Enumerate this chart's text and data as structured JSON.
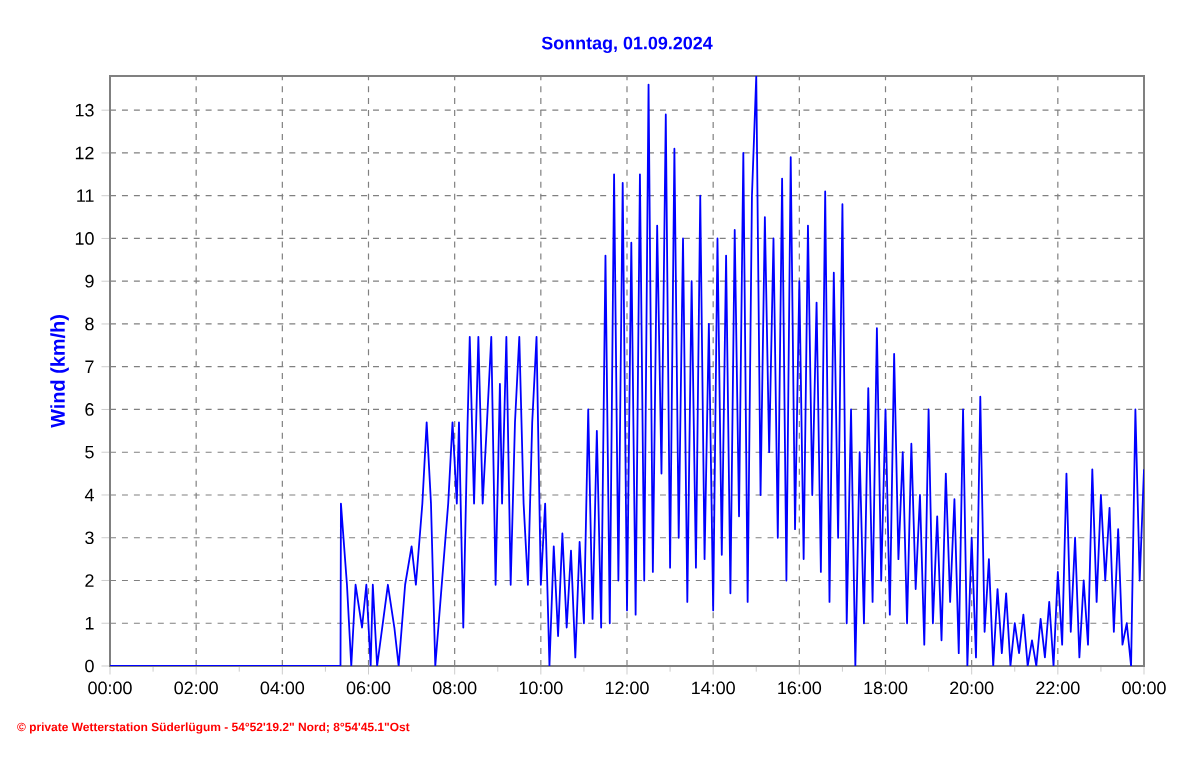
{
  "chart_data": {
    "type": "line",
    "title": "Sonntag, 01.09.2024",
    "ylabel": "Wind  (km/h)",
    "annotations": [
      "© private Wetterstation Süderlügum - 54°52'19.2\" Nord; 8°54'45.1\"Ost"
    ],
    "xlim": [
      0,
      24
    ],
    "ylim": [
      0,
      13.8
    ],
    "xticks": [
      {
        "value": 0,
        "label": "00:00"
      },
      {
        "value": 1,
        "label": null
      },
      {
        "value": 2,
        "label": "02:00"
      },
      {
        "value": 3,
        "label": null
      },
      {
        "value": 4,
        "label": "04:00"
      },
      {
        "value": 5,
        "label": null
      },
      {
        "value": 6,
        "label": "06:00"
      },
      {
        "value": 7,
        "label": null
      },
      {
        "value": 8,
        "label": "08:00"
      },
      {
        "value": 9,
        "label": null
      },
      {
        "value": 10,
        "label": "10:00"
      },
      {
        "value": 11,
        "label": null
      },
      {
        "value": 12,
        "label": "12:00"
      },
      {
        "value": 13,
        "label": null
      },
      {
        "value": 14,
        "label": "14:00"
      },
      {
        "value": 15,
        "label": null
      },
      {
        "value": 16,
        "label": "16:00"
      },
      {
        "value": 17,
        "label": null
      },
      {
        "value": 18,
        "label": "18:00"
      },
      {
        "value": 19,
        "label": null
      },
      {
        "value": 20,
        "label": "20:00"
      },
      {
        "value": 21,
        "label": null
      },
      {
        "value": 22,
        "label": "22:00"
      },
      {
        "value": 23,
        "label": null
      },
      {
        "value": 24,
        "label": "00:00"
      }
    ],
    "yticks": [
      0,
      1,
      2,
      3,
      4,
      5,
      6,
      7,
      8,
      9,
      10,
      11,
      12,
      13
    ],
    "grid": true,
    "line_style": "solid",
    "marker": "none",
    "x": [
      0,
      5.35,
      5.36,
      5.5,
      5.6,
      5.7,
      5.85,
      5.95,
      6.05,
      6.1,
      6.2,
      6.45,
      6.6,
      6.7,
      6.85,
      7.0,
      7.1,
      7.25,
      7.35,
      7.45,
      7.55,
      7.7,
      7.85,
      7.95,
      8.05,
      8.1,
      8.2,
      8.3,
      8.35,
      8.45,
      8.55,
      8.65,
      8.75,
      8.85,
      8.95,
      9.05,
      9.1,
      9.2,
      9.3,
      9.4,
      9.5,
      9.6,
      9.7,
      9.8,
      9.9,
      10.0,
      10.1,
      10.2,
      10.3,
      10.4,
      10.5,
      10.6,
      10.7,
      10.8,
      10.9,
      11.0,
      11.1,
      11.2,
      11.3,
      11.4,
      11.5,
      11.6,
      11.7,
      11.8,
      11.9,
      12.0,
      12.1,
      12.2,
      12.3,
      12.4,
      12.5,
      12.6,
      12.7,
      12.8,
      12.9,
      13.0,
      13.1,
      13.2,
      13.3,
      13.4,
      13.5,
      13.6,
      13.7,
      13.8,
      13.9,
      14.0,
      14.1,
      14.2,
      14.3,
      14.4,
      14.5,
      14.6,
      14.7,
      14.8,
      14.9,
      15.0,
      15.1,
      15.2,
      15.3,
      15.4,
      15.5,
      15.6,
      15.7,
      15.8,
      15.9,
      16.0,
      16.1,
      16.2,
      16.3,
      16.4,
      16.5,
      16.6,
      16.7,
      16.8,
      16.9,
      17.0,
      17.1,
      17.2,
      17.3,
      17.4,
      17.5,
      17.6,
      17.7,
      17.8,
      17.9,
      18.0,
      18.1,
      18.2,
      18.3,
      18.4,
      18.5,
      18.6,
      18.7,
      18.8,
      18.9,
      19.0,
      19.1,
      19.2,
      19.3,
      19.4,
      19.5,
      19.6,
      19.7,
      19.8,
      19.9,
      20.0,
      20.1,
      20.2,
      20.3,
      20.4,
      20.5,
      20.6,
      20.7,
      20.8,
      20.9,
      21.0,
      21.1,
      21.2,
      21.3,
      21.4,
      21.5,
      21.6,
      21.7,
      21.8,
      21.9,
      22.0,
      22.1,
      22.2,
      22.3,
      22.4,
      22.5,
      22.6,
      22.7,
      22.8,
      22.9,
      23.0,
      23.1,
      23.2,
      23.3,
      23.4,
      23.5,
      23.6,
      23.7,
      23.8,
      23.9,
      24.0
    ],
    "series": [
      {
        "color": "#0000ff",
        "values": [
          0,
          0,
          3.8,
          1.9,
          0,
          1.9,
          0.9,
          1.9,
          0,
          1.9,
          0,
          1.9,
          0.9,
          0,
          1.9,
          2.8,
          1.9,
          3.8,
          5.7,
          3.8,
          0,
          1.9,
          3.8,
          5.7,
          3.8,
          5.7,
          0.9,
          5.7,
          7.7,
          3.8,
          7.7,
          3.8,
          5.7,
          7.7,
          1.9,
          6.6,
          3.8,
          7.7,
          1.9,
          5.7,
          7.7,
          3.8,
          1.9,
          5.7,
          7.7,
          1.9,
          3.8,
          0,
          2.8,
          0.7,
          3.1,
          0.9,
          2.7,
          0.2,
          2.9,
          1.0,
          6.0,
          1.1,
          5.5,
          0.9,
          9.6,
          1.0,
          11.5,
          2.0,
          11.3,
          1.3,
          9.9,
          1.2,
          11.5,
          2.0,
          13.6,
          2.2,
          10.3,
          4.5,
          12.9,
          2.3,
          12.1,
          3.0,
          10.0,
          1.5,
          9.0,
          2.3,
          11.0,
          2.5,
          8.0,
          1.3,
          10.0,
          2.6,
          9.6,
          1.7,
          10.2,
          3.5,
          12.0,
          1.5,
          11.0,
          13.8,
          4.0,
          10.5,
          5.0,
          10.0,
          3.0,
          11.4,
          2.0,
          11.9,
          3.2,
          9.0,
          2.5,
          10.3,
          4.0,
          8.5,
          2.2,
          11.1,
          1.5,
          9.2,
          3.0,
          10.8,
          1.0,
          6.0,
          0,
          5.0,
          1.0,
          6.5,
          1.5,
          7.9,
          2.0,
          6.0,
          1.2,
          7.3,
          2.5,
          5.0,
          1.0,
          5.2,
          1.8,
          4.0,
          0.5,
          6.0,
          1.0,
          3.5,
          0.6,
          4.5,
          1.5,
          3.9,
          0.3,
          6.0,
          0,
          3.0,
          0.2,
          6.3,
          0.8,
          2.5,
          0,
          1.8,
          0.3,
          1.7,
          0,
          1.0,
          0.3,
          1.2,
          0,
          0.6,
          0,
          1.1,
          0.2,
          1.5,
          0,
          2.2,
          0.5,
          4.5,
          0.8,
          3.0,
          0.2,
          2.0,
          0.5,
          4.6,
          1.5,
          4.0,
          2.0,
          3.7,
          0.8,
          3.2,
          0.5,
          1.0,
          0,
          6.0,
          2.0,
          4.6
        ]
      }
    ]
  }
}
